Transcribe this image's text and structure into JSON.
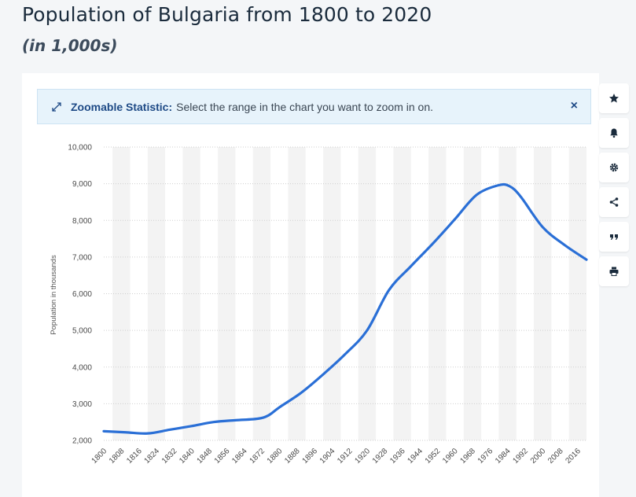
{
  "header": {
    "title": "Population of Bulgaria from 1800 to 2020",
    "subtitle": "(in 1,000s)"
  },
  "banner": {
    "label": "Zoomable Statistic:",
    "text": "Select the range in the chart you want to zoom in on.",
    "close": "×"
  },
  "toolbar": {
    "icons": [
      "star-icon",
      "bell-icon",
      "gear-icon",
      "share-icon",
      "quote-icon",
      "print-icon"
    ]
  },
  "colors": {
    "line": "#2a6fd6",
    "band": "#f3f3f3",
    "banner_accent": "#1e4a86"
  },
  "chart_data": {
    "type": "line",
    "title": "Population of Bulgaria from 1800 to 2020",
    "ylabel": "Population in thousands",
    "xlabel": "",
    "ylim": [
      2000,
      10000
    ],
    "xlim": [
      1800,
      2020
    ],
    "grid": true,
    "yticks": [
      2000,
      3000,
      4000,
      5000,
      6000,
      7000,
      8000,
      9000,
      10000
    ],
    "ytick_labels": [
      "2,000",
      "3,000",
      "4,000",
      "5,000",
      "6,000",
      "7,000",
      "8,000",
      "9,000",
      "10,000"
    ],
    "xtick_labels": [
      "1800",
      "1808",
      "1816",
      "1824",
      "1832",
      "1840",
      "1848",
      "1856",
      "1864",
      "1872",
      "1880",
      "1888",
      "1896",
      "1904",
      "1912",
      "1920",
      "1928",
      "1936",
      "1944",
      "1952",
      "1960",
      "1968",
      "1976",
      "1984",
      "1992",
      "2000",
      "2008",
      "2016"
    ],
    "series": [
      {
        "name": "Population",
        "x": [
          1800,
          1810,
          1820,
          1830,
          1840,
          1850,
          1860,
          1870,
          1875,
          1880,
          1890,
          1900,
          1910,
          1920,
          1930,
          1940,
          1950,
          1960,
          1970,
          1980,
          1985,
          1990,
          2000,
          2010,
          2020
        ],
        "y": [
          2250,
          2220,
          2190,
          2290,
          2390,
          2500,
          2550,
          2590,
          2680,
          2900,
          3300,
          3800,
          4350,
          5000,
          6100,
          6750,
          7370,
          8030,
          8700,
          8960,
          8930,
          8650,
          7820,
          7330,
          6930
        ]
      }
    ]
  }
}
